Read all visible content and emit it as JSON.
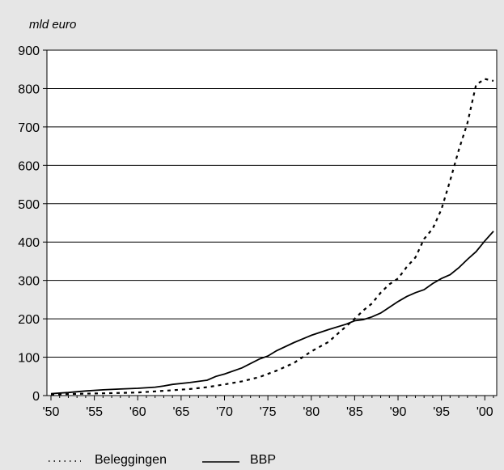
{
  "chart_data": {
    "type": "line",
    "title": "",
    "xlabel": "",
    "ylabel": "mld euro",
    "ylim": [
      0,
      900
    ],
    "xlim": [
      1950,
      2001
    ],
    "grid": "horizontal",
    "legend_position": "bottom-left",
    "x_ticks": [
      "'50",
      "'55",
      "'60",
      "'65",
      "'70",
      "'75",
      "'80",
      "'85",
      "'90",
      "'95",
      "'00"
    ],
    "y_ticks": [
      "0",
      "100",
      "200",
      "300",
      "400",
      "500",
      "600",
      "700",
      "800",
      "900"
    ],
    "series": [
      {
        "name": "Beleggingen",
        "style": "dotted",
        "color": "#000000",
        "points": [
          [
            1950,
            3
          ],
          [
            1952,
            4
          ],
          [
            1954,
            5
          ],
          [
            1956,
            6
          ],
          [
            1958,
            7
          ],
          [
            1960,
            8
          ],
          [
            1962,
            11
          ],
          [
            1964,
            14
          ],
          [
            1966,
            17
          ],
          [
            1968,
            22
          ],
          [
            1970,
            29
          ],
          [
            1972,
            37
          ],
          [
            1974,
            48
          ],
          [
            1976,
            65
          ],
          [
            1978,
            85
          ],
          [
            1980,
            115
          ],
          [
            1982,
            140
          ],
          [
            1983,
            160
          ],
          [
            1985,
            200
          ],
          [
            1986,
            222
          ],
          [
            1987,
            240
          ],
          [
            1988,
            268
          ],
          [
            1989,
            290
          ],
          [
            1990,
            305
          ],
          [
            1991,
            335
          ],
          [
            1992,
            360
          ],
          [
            1993,
            408
          ],
          [
            1994,
            435
          ],
          [
            1995,
            485
          ],
          [
            1996,
            560
          ],
          [
            1997,
            640
          ],
          [
            1998,
            710
          ],
          [
            1999,
            810
          ],
          [
            2000,
            825
          ],
          [
            2001,
            820
          ]
        ]
      },
      {
        "name": "BBP",
        "style": "solid",
        "color": "#000000",
        "points": [
          [
            1950,
            5
          ],
          [
            1952,
            8
          ],
          [
            1954,
            12
          ],
          [
            1956,
            15
          ],
          [
            1958,
            17
          ],
          [
            1960,
            19
          ],
          [
            1962,
            22
          ],
          [
            1963,
            25
          ],
          [
            1964,
            29
          ],
          [
            1966,
            34
          ],
          [
            1968,
            40
          ],
          [
            1969,
            50
          ],
          [
            1970,
            56
          ],
          [
            1972,
            72
          ],
          [
            1974,
            95
          ],
          [
            1975,
            103
          ],
          [
            1976,
            117
          ],
          [
            1978,
            138
          ],
          [
            1980,
            157
          ],
          [
            1982,
            172
          ],
          [
            1984,
            186
          ],
          [
            1985,
            195
          ],
          [
            1986,
            198
          ],
          [
            1987,
            205
          ],
          [
            1988,
            215
          ],
          [
            1989,
            230
          ],
          [
            1990,
            245
          ],
          [
            1991,
            258
          ],
          [
            1992,
            268
          ],
          [
            1993,
            276
          ],
          [
            1994,
            292
          ],
          [
            1995,
            305
          ],
          [
            1996,
            315
          ],
          [
            1997,
            333
          ],
          [
            1998,
            355
          ],
          [
            1999,
            375
          ],
          [
            2000,
            403
          ],
          [
            2001,
            428
          ]
        ]
      }
    ]
  },
  "legend": {
    "items": [
      {
        "label": "Beleggingen",
        "style": "dotted"
      },
      {
        "label": "BBP",
        "style": "solid"
      }
    ]
  }
}
